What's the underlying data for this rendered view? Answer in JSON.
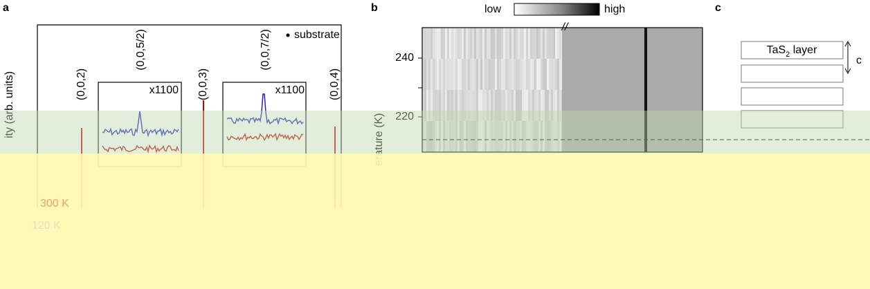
{
  "panels": {
    "a": {
      "label": "a",
      "legend": "substrate",
      "ylabel": "ity (arb. units)",
      "peaks": [
        "(0,0,2)",
        "(0,0,5/2)",
        "(0,0,3)",
        "(0,0,7/2)",
        "(0,0,4)"
      ],
      "insets": [
        "x1100",
        "x1100"
      ],
      "temps": [
        "300 K",
        "120 K"
      ]
    },
    "b": {
      "label": "b",
      "colorbar": [
        "low",
        "high"
      ],
      "break": "//",
      "ylabel": "erature (K)",
      "yticks": [
        "240",
        "220"
      ]
    },
    "c": {
      "label": "c",
      "layer": "TaS2 layer",
      "axis": "c"
    }
  }
}
